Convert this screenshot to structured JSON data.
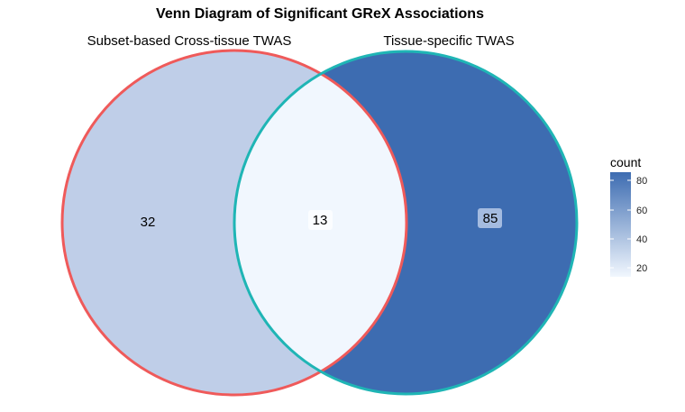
{
  "title": "Venn Diagram of Significant GReX Associations",
  "sets": [
    {
      "name": "Subset-based Cross-tissue TWAS",
      "border_color": "#EF5A5A"
    },
    {
      "name": "Tissue-specific TWAS",
      "border_color": "#1FB5B5"
    }
  ],
  "regions": [
    {
      "label": "32",
      "count": 32,
      "fill": "#BFCEE8"
    },
    {
      "label": "13",
      "count": 13,
      "fill": "#F1F7FE"
    },
    {
      "label": "85",
      "count": 85,
      "fill": "#3D6CB1"
    }
  ],
  "legend": {
    "title": "count",
    "ticks": [
      "80",
      "60",
      "40",
      "20"
    ],
    "low_color": "#F1F7FE",
    "high_color": "#3D6CB1"
  }
}
